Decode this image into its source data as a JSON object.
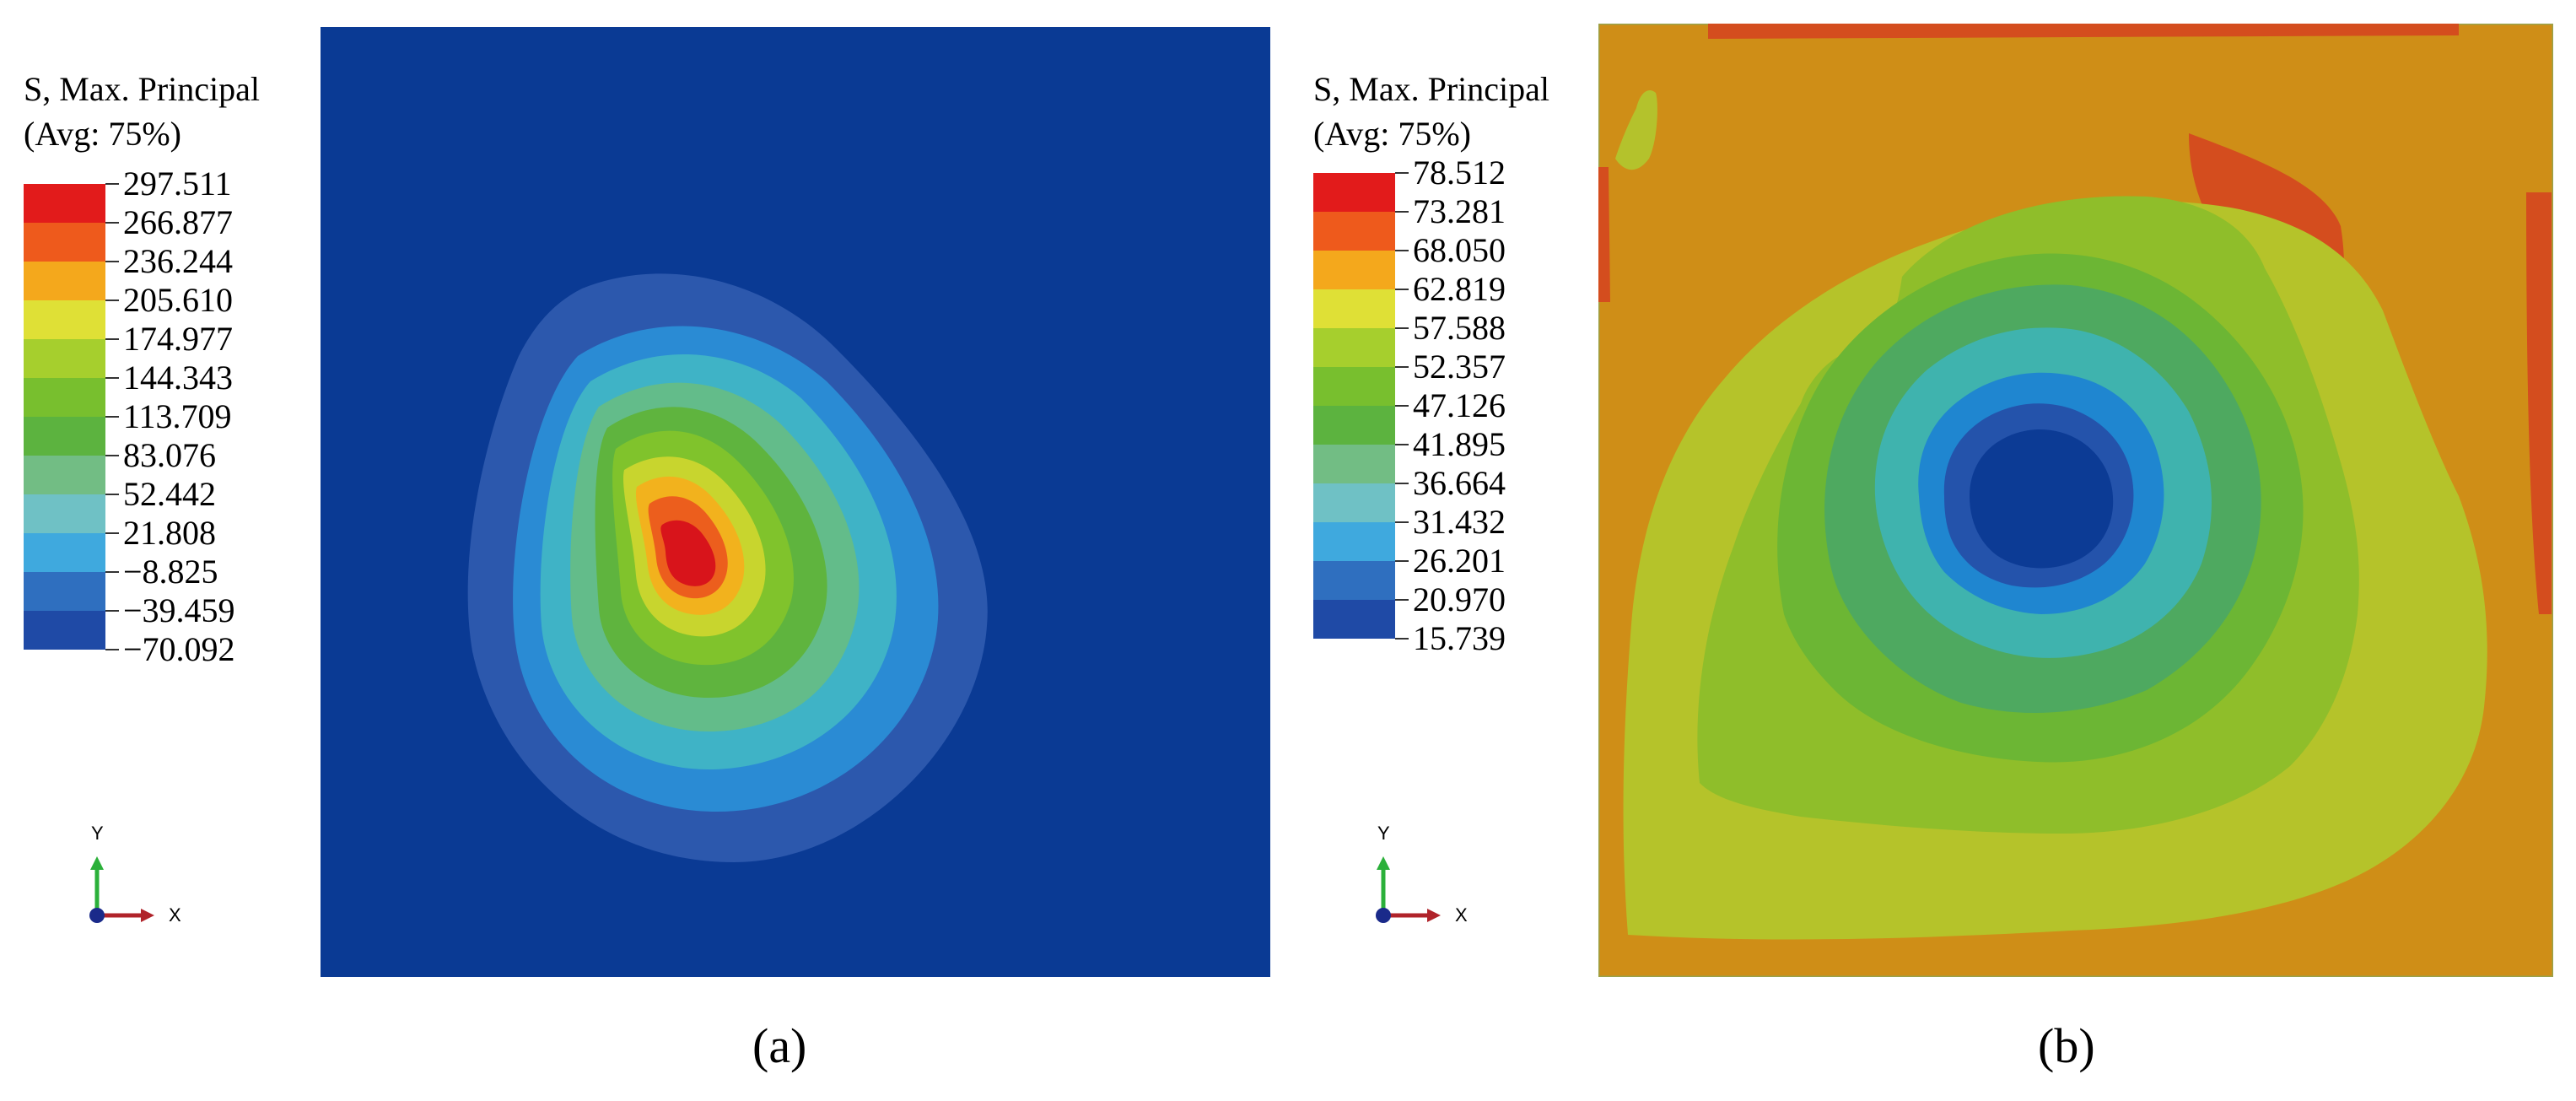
{
  "panels": [
    {
      "id": "a",
      "title_line1": "S, Max. Principal",
      "title_line2": "(Avg: 75%)",
      "legend_values": [
        "297.511",
        "266.877",
        "236.244",
        "205.610",
        "174.977",
        "144.343",
        "113.709",
        "83.076",
        "52.442",
        "21.808",
        "−8.825",
        "−39.459",
        "−70.092"
      ],
      "legend_colors": [
        "#e21b1b",
        "#ee5a1c",
        "#f4a81c",
        "#dfe036",
        "#a6cf2d",
        "#78bf2e",
        "#5cb33f",
        "#72bd84",
        "#6fc1c5",
        "#3fa9de",
        "#2f6fbf",
        "#1f4aa6"
      ],
      "axis_y": "Y",
      "axis_x": "X",
      "caption": "(a)"
    },
    {
      "id": "b",
      "title_line1": "S, Max. Principal",
      "title_line2": "(Avg: 75%)",
      "legend_values": [
        "78.512",
        "73.281",
        "68.050",
        "62.819",
        "57.588",
        "52.357",
        "47.126",
        "41.895",
        "36.664",
        "31.432",
        "26.201",
        "20.970",
        "15.739"
      ],
      "legend_colors": [
        "#e21b1b",
        "#ee5a1c",
        "#f4a81c",
        "#dfe036",
        "#a6cf2d",
        "#78bf2e",
        "#5cb33f",
        "#72bd84",
        "#6fc1c5",
        "#3fa9de",
        "#2f6fbf",
        "#1f4aa6"
      ],
      "axis_y": "Y",
      "axis_x": "X",
      "caption": "(b)"
    }
  ]
}
